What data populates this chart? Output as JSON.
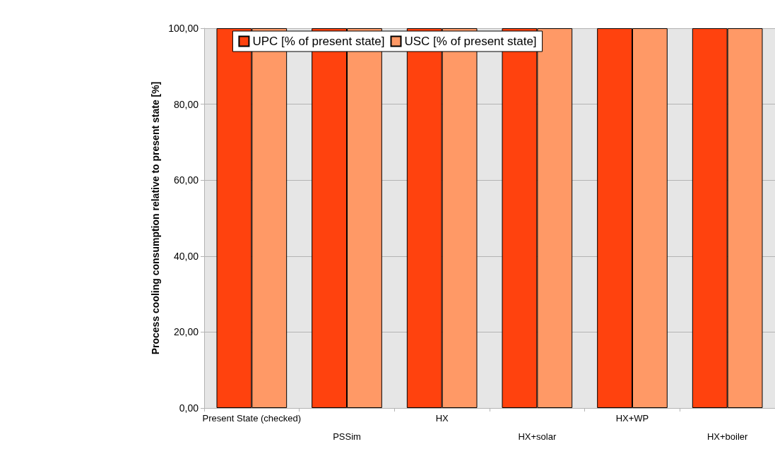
{
  "chart_data": {
    "type": "bar",
    "ylabel": "Process cooling consumption relative to present state [%]",
    "categories": [
      "Present State (checked)",
      "PSSim",
      "HX",
      "HX+solar",
      "HX+WP",
      "HX+boiler"
    ],
    "series": [
      {
        "name": "UPC [% of present state]",
        "color": "#ff420e",
        "values": [
          100,
          100,
          100,
          100,
          100,
          100
        ]
      },
      {
        "name": "USC [% of present state]",
        "color": "#ff9966",
        "values": [
          100,
          100,
          100,
          100,
          100,
          100
        ]
      }
    ],
    "ylim": [
      0,
      100
    ],
    "yticks": [
      {
        "value": 0,
        "label": "0,00"
      },
      {
        "value": 20,
        "label": "20,00"
      },
      {
        "value": 40,
        "label": "40,00"
      },
      {
        "value": 60,
        "label": "60,00"
      },
      {
        "value": 80,
        "label": "80,00"
      },
      {
        "value": 100,
        "label": "100,00"
      }
    ],
    "grid": "y",
    "legend": "top"
  }
}
